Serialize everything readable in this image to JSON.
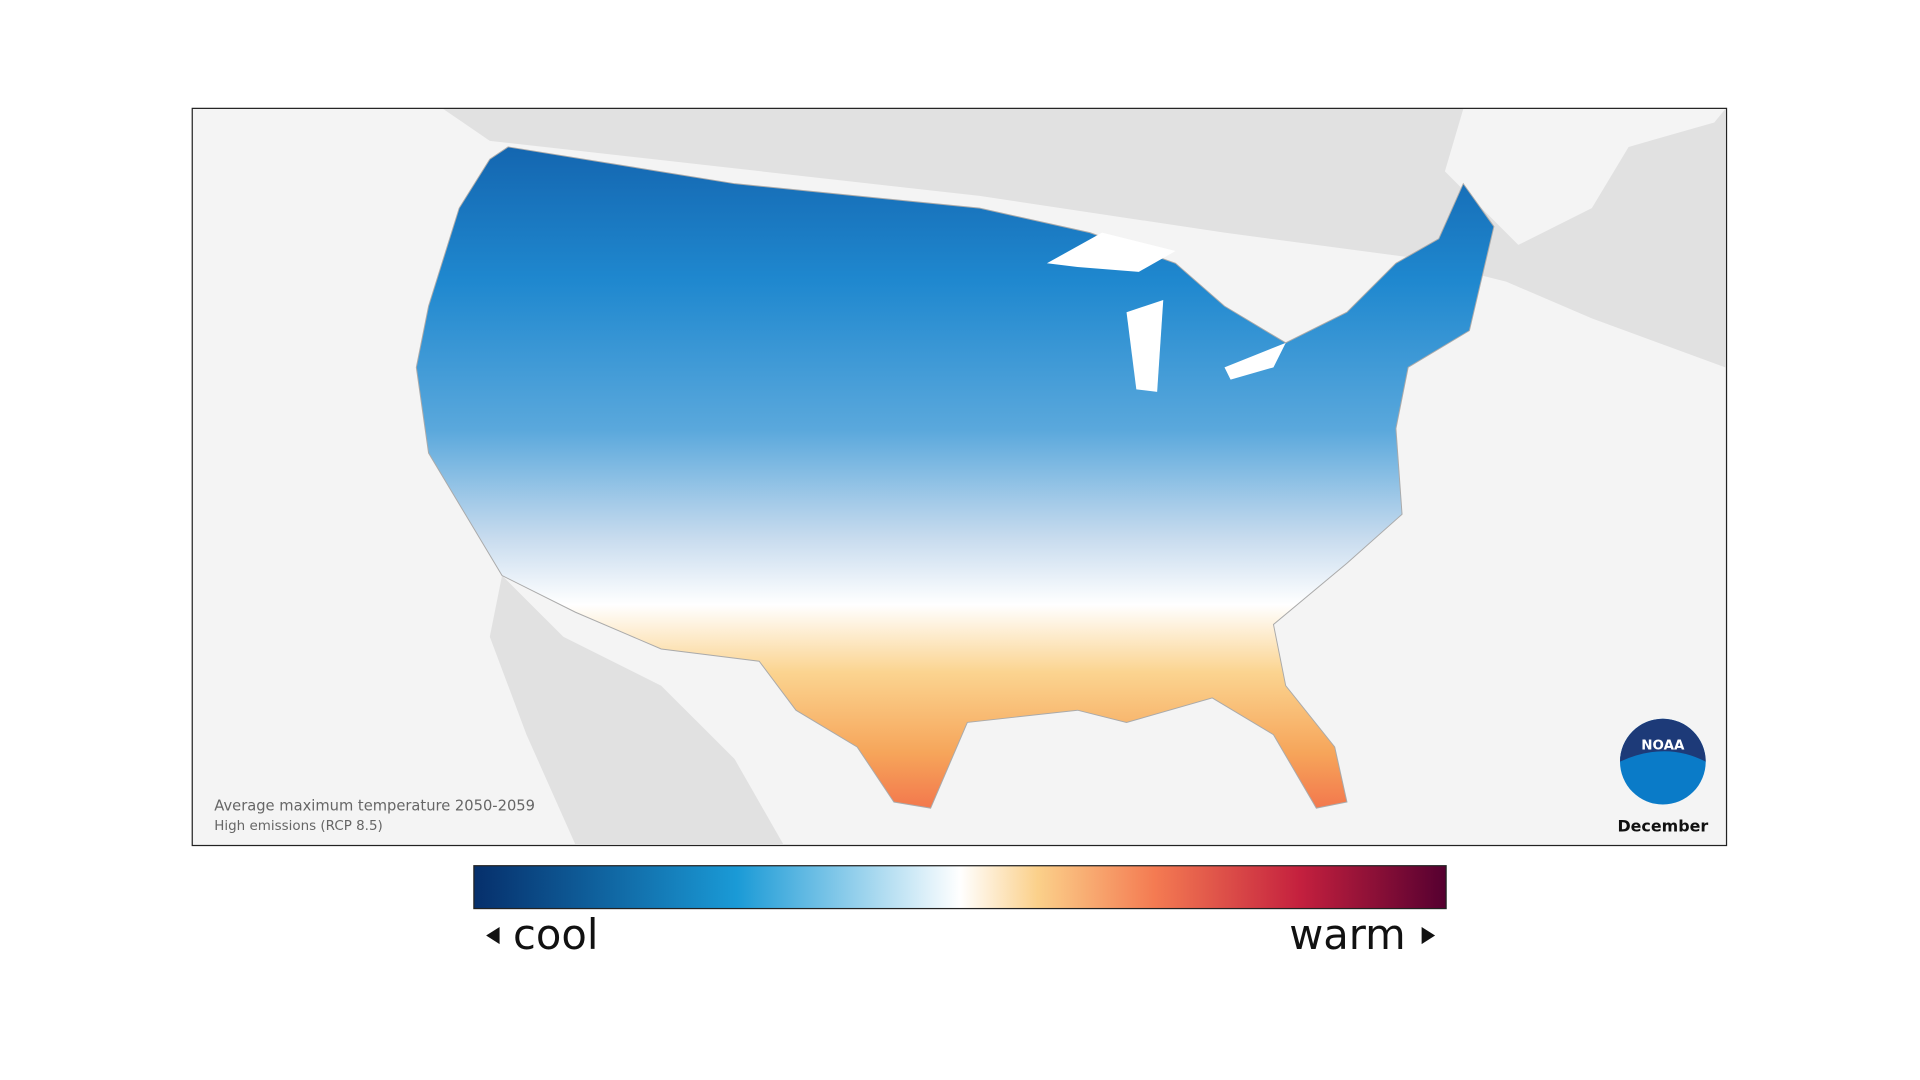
{
  "map": {
    "caption": "Average maximum temperature 2050-2059",
    "subcaption": "High emissions (RCP 8.5)",
    "month": "December",
    "logo": "NOAA"
  },
  "legend": {
    "low_label": "cool",
    "high_label": "warm"
  }
}
